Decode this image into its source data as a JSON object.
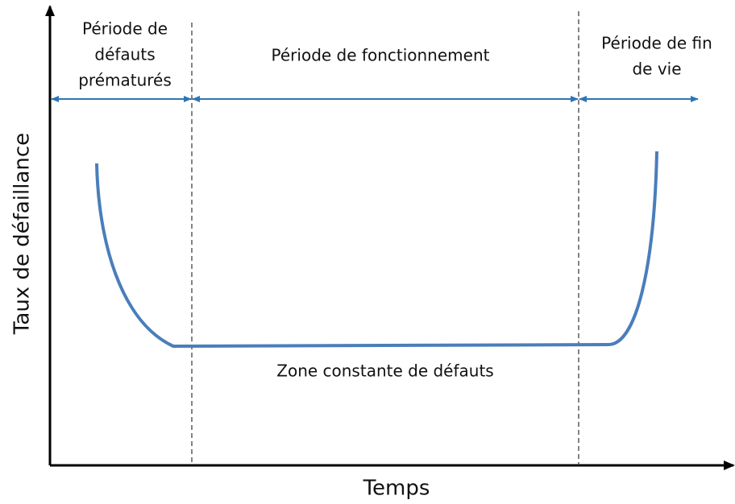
{
  "axes": {
    "y_label": "Taux de défaillance",
    "x_label": "Temps"
  },
  "periods": [
    {
      "lines": [
        "Période de",
        "défauts",
        "prématurés"
      ]
    },
    {
      "lines": [
        "Période de fonctionnement"
      ]
    },
    {
      "lines": [
        "Période de fin",
        "de vie"
      ]
    }
  ],
  "curve_label": "Zone constante de défauts"
}
